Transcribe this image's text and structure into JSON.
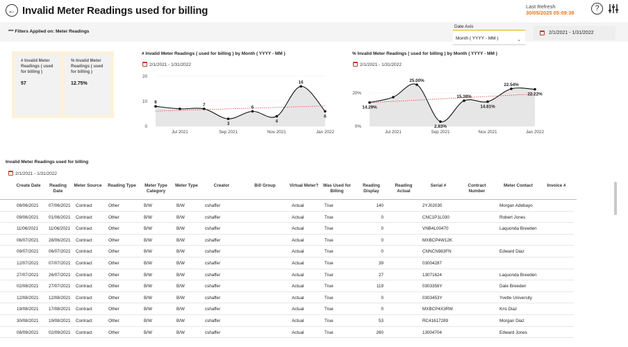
{
  "header": {
    "title": "Invalid Meter Readings used for billing",
    "last_refresh_label": "Last Refresh",
    "last_refresh_value": "30/05/2025 05:09:38",
    "help_symbol": "?"
  },
  "filters": {
    "applied_text": "*** Filters Applied on: Meter Readings",
    "date_axis_label": "Date Axis",
    "date_axis_value": "Month ( YYYY - MM )",
    "date_range": "2/1/2021 - 1/31/2022"
  },
  "kpis": [
    {
      "label": "# Invalid Meter Readings ( used for billing )",
      "value": "57"
    },
    {
      "label": "% Invalid Meter Readings ( used for billing )",
      "value": "12.75%"
    }
  ],
  "charts": {
    "count": {
      "title": "# Invalid Meter Readings ( used for billing ) by Month ( YYYY - MM )",
      "date_range": "2/1/2021 - 1/31/2022"
    },
    "percent": {
      "title": "% Invalid Meter Readings ( used for billing ) by Month ( YYYY - MM )",
      "date_range": "2/1/2021 - 1/31/2022"
    }
  },
  "chart_data": [
    {
      "type": "area",
      "title": "# Invalid Meter Readings ( used for billing ) by Month ( YYYY - MM )",
      "x": [
        "2021-06",
        "2021-07",
        "2021-08",
        "2021-09",
        "2021-10",
        "2021-11",
        "2021-12",
        "2022-01"
      ],
      "series": [
        {
          "values": [
            8,
            7,
            7,
            3,
            6,
            4,
            16,
            6
          ]
        }
      ],
      "data_labels": [
        "8",
        "",
        "7",
        "3",
        "6",
        "4",
        "16",
        "6"
      ],
      "trend_line": true,
      "x_tick_labels": [
        "Jul 2021",
        "Sep 2021",
        "Nov 2021",
        "Jan 2022"
      ],
      "y_tick_labels": [
        "0",
        "10",
        "20"
      ],
      "ylim": [
        0,
        20
      ]
    },
    {
      "type": "area",
      "title": "% Invalid Meter Readings ( used for billing ) by Month ( YYYY - MM )",
      "x": [
        "2021-06",
        "2021-07",
        "2021-08",
        "2021-09",
        "2021-10",
        "2021-11",
        "2021-12",
        "2022-01"
      ],
      "series": [
        {
          "values": [
            14.29,
            17.5,
            25.0,
            2.83,
            15.38,
            14.81,
            22.54,
            22.22
          ]
        }
      ],
      "data_labels": [
        "14.29%",
        "",
        "25.00%",
        "2.83%",
        "15.38%",
        "14.81%",
        "22.54%",
        "22.22%"
      ],
      "trend_line": true,
      "x_tick_labels": [
        "Jul 2021",
        "Sep 2021",
        "Nov 2021",
        "Jan 2022"
      ],
      "y_tick_labels": [
        "0%",
        "20%"
      ],
      "ylim": [
        0,
        30
      ]
    }
  ],
  "table": {
    "title": "Invalid Meter Readings used for billing",
    "date_range": "2/1/2021 - 1/31/2022",
    "columns": [
      "Create Date",
      "Reading Date",
      "Meter Source",
      "Reading Type",
      "Meter Type Category",
      "Meter Type",
      "Creator",
      "Bill Group",
      "Virtual Meter?",
      "Was Used for Billing",
      "Reading Display",
      "Reading Actual",
      "Serial #",
      "Contract Number",
      "Meter Contact",
      "Invoice #"
    ],
    "rows": [
      [
        "08/06/2021",
        "07/06/2021",
        "Contract",
        "Other",
        "B/W",
        "B/W",
        "cshaffer",
        "",
        "Actual",
        "True",
        "140",
        "",
        "2YJ02030",
        "",
        "Morgan Adebayo",
        ""
      ],
      [
        "09/06/2021",
        "01/06/2021",
        "Contract",
        "Other",
        "B/W",
        "B/W",
        "cshaffer",
        "",
        "Actual",
        "True",
        "0",
        "",
        "CNC1P1L030",
        "",
        "Robert Jones",
        ""
      ],
      [
        "11/06/2021",
        "11/06/2021",
        "Contract",
        "Other",
        "B/W",
        "B/W",
        "cshaffer",
        "",
        "Actual",
        "True",
        "0",
        "",
        "VNB4L00470",
        "",
        "Laquonda Breeden",
        ""
      ],
      [
        "06/07/2021",
        "28/06/2021",
        "Contract",
        "Other",
        "B/W",
        "B/W",
        "cshaffer",
        "",
        "Actual",
        "True",
        "0",
        "",
        "MXBCP4W12K",
        "",
        "",
        ""
      ],
      [
        "09/07/2021",
        "06/07/2021",
        "Contract",
        "Other",
        "B/W",
        "B/W",
        "cshaffer",
        "",
        "Actual",
        "True",
        "0",
        "",
        "CNNCN983FN",
        "",
        "Edward Diaz",
        ""
      ],
      [
        "12/07/2021",
        "07/07/2021",
        "Contract",
        "Other",
        "B/W",
        "B/W",
        "cshaffer",
        "",
        "Actual",
        "True",
        "39",
        "",
        "03004287",
        "",
        "",
        ""
      ],
      [
        "27/07/2021",
        "26/07/2021",
        "Contract",
        "Other",
        "B/W",
        "B/W",
        "cshaffer",
        "",
        "Actual",
        "True",
        "27",
        "",
        "13071624",
        "",
        "Laquonda Breeden",
        ""
      ],
      [
        "02/08/2021",
        "27/07/2021",
        "Contract",
        "Other",
        "B/W",
        "B/W",
        "cshaffer",
        "",
        "Actual",
        "True",
        "119",
        "",
        "0303356Y",
        "",
        "Dale Breeden",
        ""
      ],
      [
        "12/08/2021",
        "12/08/2021",
        "Contract",
        "Other",
        "B/W",
        "B/W",
        "cshaffer",
        "",
        "Actual",
        "True",
        "0",
        "",
        "0303453Y",
        "",
        "Yvette University",
        ""
      ],
      [
        "19/08/2021",
        "17/08/2021",
        "Contract",
        "Other",
        "B/W",
        "B/W",
        "cshaffer",
        "",
        "Actual",
        "True",
        "0",
        "",
        "MXBCP4X3RW",
        "",
        "Kris Diaz",
        ""
      ],
      [
        "30/08/2021",
        "19/08/2021",
        "Contract",
        "Other",
        "B/W",
        "B/W",
        "cshaffer",
        "",
        "Actual",
        "True",
        "53",
        "",
        "RC41617289",
        "",
        "Morgan Diaz",
        ""
      ],
      [
        "08/09/2021",
        "02/09/2021",
        "Contract",
        "Other",
        "B/W",
        "B/W",
        "cshaffer",
        "",
        "Actual",
        "True",
        "260",
        "",
        "13004704",
        "",
        "Edward Jones",
        ""
      ]
    ]
  }
}
